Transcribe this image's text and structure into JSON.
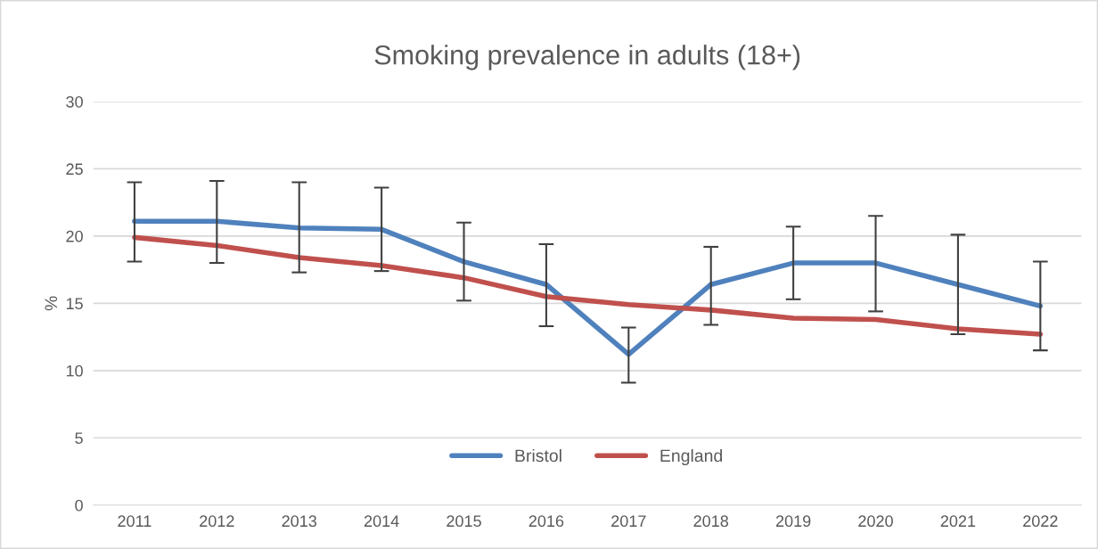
{
  "chart_data": {
    "type": "line",
    "title": "Smoking prevalence in adults (18+)",
    "ylabel": "%",
    "categories": [
      "2011",
      "2012",
      "2013",
      "2014",
      "2015",
      "2016",
      "2017",
      "2018",
      "2019",
      "2020",
      "2021",
      "2022"
    ],
    "series": [
      {
        "name": "Bristol",
        "color": "#4f81bd",
        "values": [
          21.1,
          21.1,
          20.6,
          20.5,
          18.1,
          16.4,
          11.2,
          16.4,
          18.0,
          18.0,
          16.4,
          14.8
        ],
        "errors": [
          [
            18.1,
            24.0
          ],
          [
            18.0,
            24.1
          ],
          [
            17.3,
            24.0
          ],
          [
            17.4,
            23.6
          ],
          [
            15.2,
            21.0
          ],
          [
            13.3,
            19.4
          ],
          [
            9.1,
            13.2
          ],
          [
            13.4,
            19.2
          ],
          [
            15.3,
            20.7
          ],
          [
            14.4,
            21.5
          ],
          [
            12.7,
            20.1
          ],
          [
            11.5,
            18.1
          ]
        ]
      },
      {
        "name": "England",
        "color": "#c0504d",
        "values": [
          19.9,
          19.3,
          18.4,
          17.8,
          16.9,
          15.5,
          14.9,
          14.5,
          13.9,
          13.8,
          13.1,
          12.7
        ]
      }
    ],
    "ylim": [
      0,
      30
    ],
    "yticks": [
      0,
      5,
      10,
      15,
      20,
      25,
      30
    ],
    "grid": "y",
    "legend": "bottom",
    "marker": "none",
    "line_style": "solid"
  }
}
